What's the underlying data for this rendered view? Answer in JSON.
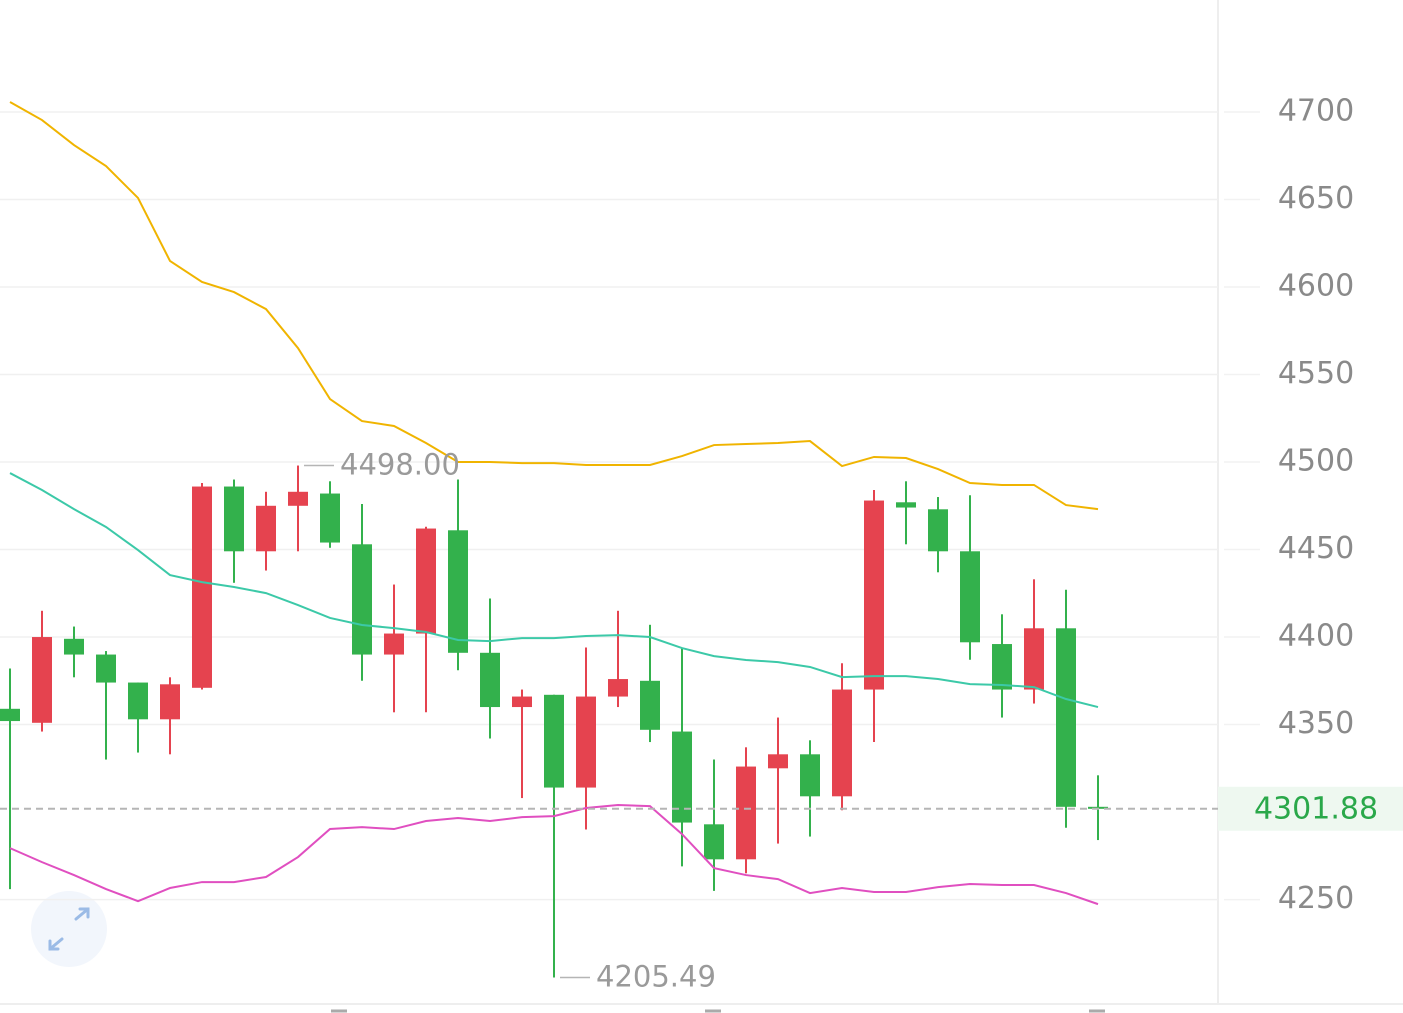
{
  "chart_data": {
    "type": "candlestick",
    "up_color": "#e5434f",
    "down_color": "#33b14c",
    "open": [
      4359,
      4351,
      4399,
      4390,
      4374,
      4353,
      4371,
      4486,
      4449,
      4475,
      4482,
      4453,
      4390,
      4402,
      4461,
      4391,
      4360,
      4367,
      4314,
      4366,
      4375,
      4346,
      4293,
      4273,
      4325,
      4333,
      4309,
      4370,
      4477,
      4473,
      4449,
      4396,
      4370,
      4405,
      4303
    ],
    "high": [
      4382,
      4415,
      4406,
      4392,
      4374,
      4377,
      4488,
      4490,
      4483,
      4498,
      4489,
      4476,
      4430,
      4463,
      4490,
      4422,
      4370,
      4367,
      4394,
      4415,
      4407,
      4394,
      4330,
      4337,
      4354,
      4341,
      4385,
      4484,
      4489,
      4480,
      4481,
      4413,
      4433,
      4427,
      4321
    ],
    "low": [
      4256,
      4346,
      4377,
      4330,
      4334,
      4333,
      4370,
      4431,
      4438,
      4449,
      4451,
      4375,
      4357,
      4357,
      4381,
      4342,
      4308,
      4205.49,
      4290,
      4360,
      4340,
      4269,
      4255,
      4265,
      4282,
      4286,
      4301,
      4340,
      4453,
      4437,
      4387,
      4354,
      4362,
      4291,
      4284
    ],
    "close": [
      4352,
      4400,
      4390,
      4374,
      4353,
      4373,
      4486,
      4449,
      4475,
      4483,
      4454,
      4390,
      4402,
      4462,
      4391,
      4360,
      4366,
      4314,
      4366,
      4376,
      4347,
      4294,
      4273,
      4326,
      4333,
      4309,
      4370,
      4478,
      4474,
      4449,
      4397,
      4370,
      4405,
      4303,
      4301.88
    ],
    "overlays": [
      {
        "color": "#f0b400",
        "values": [
          4705.7,
          4695.4,
          4681.1,
          4669.1,
          4650.9,
          4614.9,
          4602.9,
          4597.1,
          4587.4,
          4565.1,
          4536,
          4523.4,
          4520.6,
          4510.9,
          4500,
          4500,
          4499.4,
          4499.4,
          4498.3,
          4498.3,
          4498.3,
          4503.4,
          4509.7,
          4510.3,
          4510.9,
          4512,
          4497.7,
          4502.9,
          4502.3,
          4496,
          4488,
          4486.9,
          4486.9,
          4475.4,
          4473.1
        ]
      },
      {
        "color": "#3cc9a8",
        "values": [
          4493.7,
          4484,
          4473.1,
          4462.9,
          4449.7,
          4435.4,
          4431.4,
          4428.6,
          4425.1,
          4418.3,
          4410.9,
          4406.9,
          4405.1,
          4402.9,
          4398.3,
          4397.7,
          4399.4,
          4399.4,
          4400.6,
          4401.1,
          4400,
          4393.7,
          4389.1,
          4386.9,
          4385.7,
          4382.9,
          4377.1,
          4377.7,
          4377.7,
          4376,
          4373.1,
          4372.6,
          4371.4,
          4364.6,
          4360
        ]
      },
      {
        "color": "#e04fc0",
        "values": [
          4279.4,
          4271.4,
          4264,
          4256,
          4249.1,
          4256.6,
          4260,
          4260,
          4262.9,
          4274.3,
          4290.3,
          4291.4,
          4290.3,
          4294.9,
          4296.6,
          4294.9,
          4297.1,
          4297.7,
          4302.3,
          4304,
          4303.4,
          4287.4,
          4268,
          4264,
          4261.7,
          4253.7,
          4256.6,
          4254.3,
          4254.3,
          4257.1,
          4258.9,
          4258.3,
          4258.3,
          4253.7,
          4247.4
        ]
      }
    ],
    "max_label": {
      "value": 4498,
      "label": "4498.00"
    },
    "min_label": {
      "value": 4205.49,
      "label": "4205.49"
    },
    "last_price": 4301.88,
    "ylim": [
      4190.9,
      4764
    ],
    "yticks": [
      4250,
      4350,
      4400,
      4450,
      4500,
      4550,
      4600,
      4650,
      4700
    ],
    "grid": true
  }
}
